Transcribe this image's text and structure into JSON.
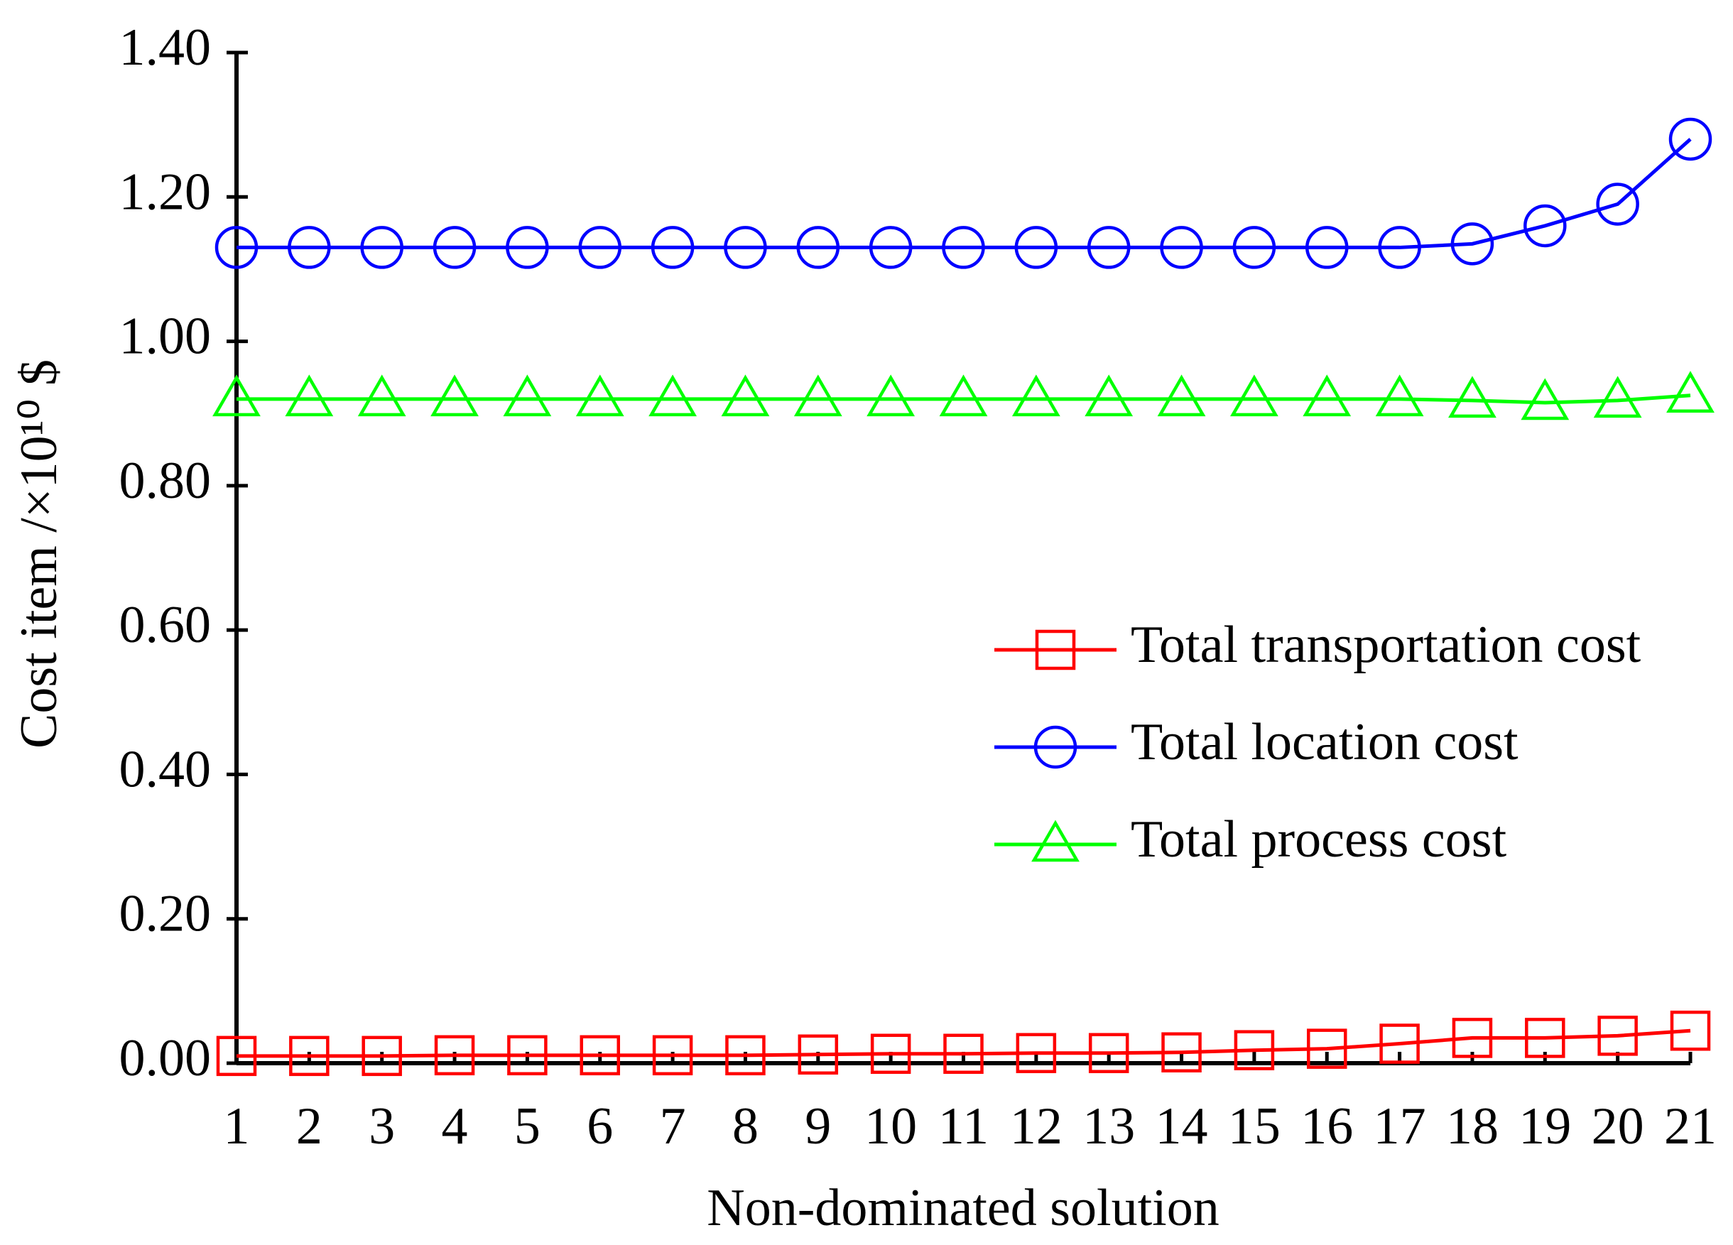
{
  "chart_data": {
    "type": "line",
    "xlabel": "Non-dominated solution",
    "ylabel": "Cost item /×10¹⁰ $",
    "categories": [
      "1",
      "2",
      "3",
      "4",
      "5",
      "6",
      "7",
      "8",
      "9",
      "10",
      "11",
      "12",
      "13",
      "14",
      "15",
      "16",
      "17",
      "18",
      "19",
      "20",
      "21"
    ],
    "series": [
      {
        "name": "Total transportation cost",
        "color": "#ff0000",
        "marker": "square",
        "values": [
          0.01,
          0.01,
          0.01,
          0.011,
          0.011,
          0.011,
          0.011,
          0.011,
          0.012,
          0.013,
          0.013,
          0.014,
          0.014,
          0.015,
          0.018,
          0.02,
          0.027,
          0.035,
          0.035,
          0.038,
          0.045
        ]
      },
      {
        "name": "Total location cost",
        "color": "#0000ff",
        "marker": "circle",
        "values": [
          1.13,
          1.13,
          1.13,
          1.13,
          1.13,
          1.13,
          1.13,
          1.13,
          1.13,
          1.13,
          1.13,
          1.13,
          1.13,
          1.13,
          1.13,
          1.13,
          1.13,
          1.135,
          1.16,
          1.19,
          1.28
        ]
      },
      {
        "name": "Total process cost",
        "color": "#00ff00",
        "marker": "triangle",
        "values": [
          0.92,
          0.92,
          0.92,
          0.92,
          0.92,
          0.92,
          0.92,
          0.92,
          0.92,
          0.92,
          0.92,
          0.92,
          0.92,
          0.92,
          0.92,
          0.92,
          0.92,
          0.918,
          0.915,
          0.918,
          0.925
        ]
      }
    ],
    "ylim": [
      0,
      1.4
    ],
    "yticks": [
      {
        "value": 0,
        "label": "0.00"
      },
      {
        "value": 0.2,
        "label": "0.20"
      },
      {
        "value": 0.4,
        "label": "0.40"
      },
      {
        "value": 0.6,
        "label": "0.60"
      },
      {
        "value": 0.8,
        "label": "0.80"
      },
      {
        "value": 1.0,
        "label": "1.00"
      },
      {
        "value": 1.2,
        "label": "1.20"
      },
      {
        "value": 1.4,
        "label": "1.40"
      }
    ],
    "grid": false
  }
}
